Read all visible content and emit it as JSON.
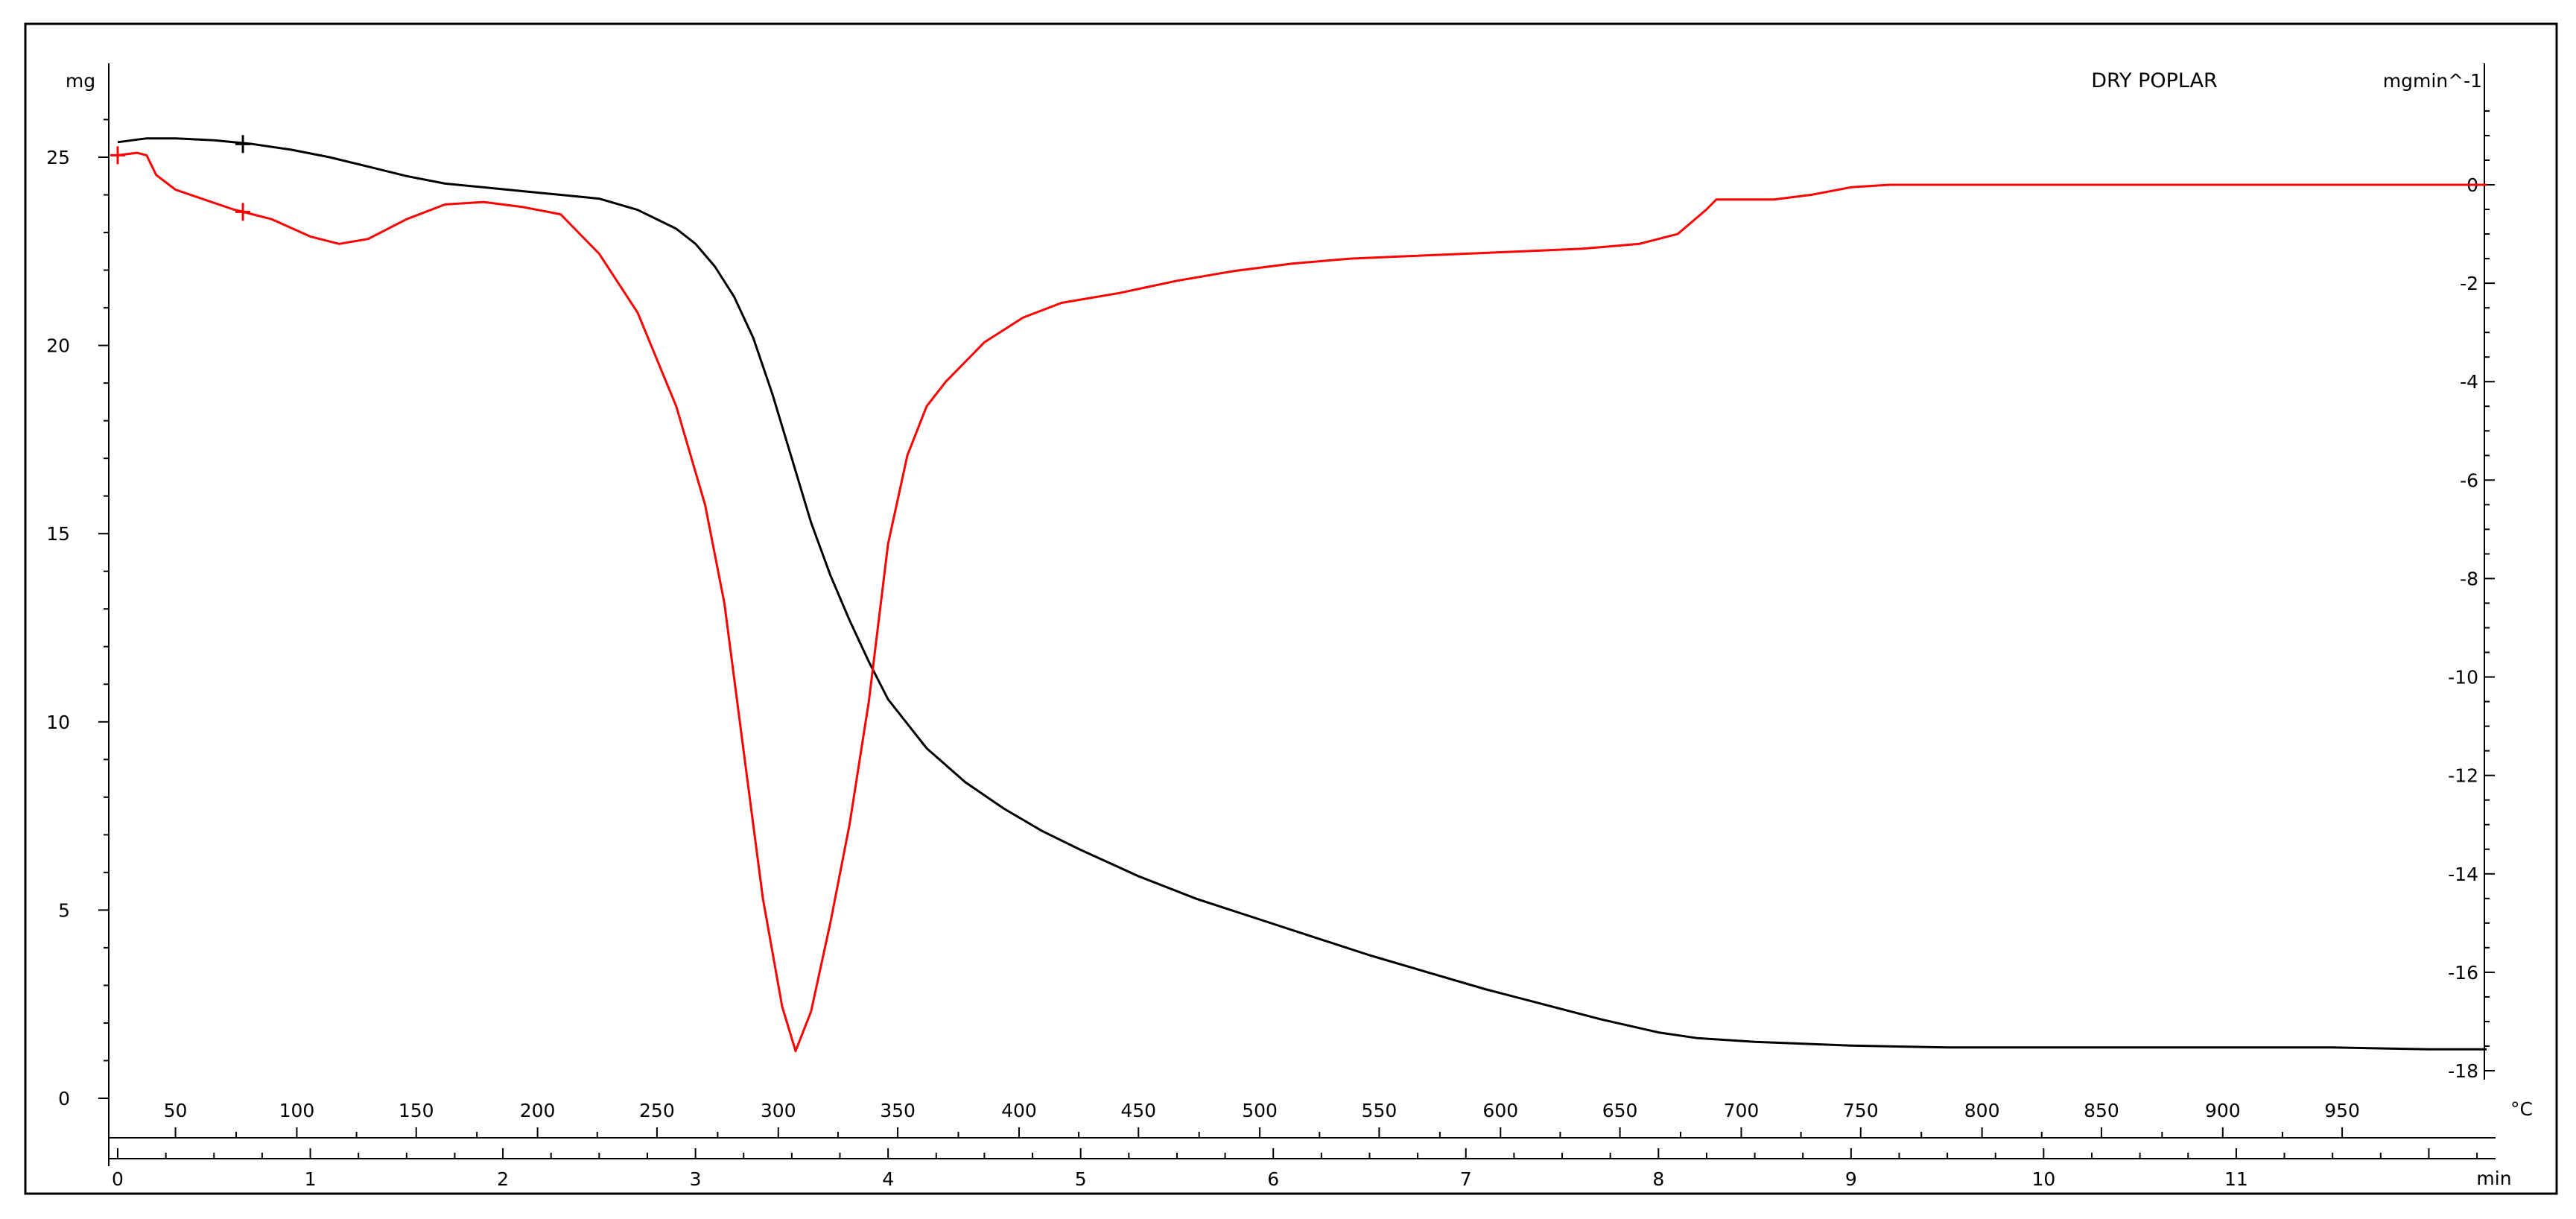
{
  "chart_data": {
    "type": "line",
    "title": "DRY POPLAR",
    "left_axis_label": "mg",
    "right_axis_label": "mgmin^-1",
    "time_axis_label": "min",
    "temp_axis_label": "°C",
    "left_ylim": [
      -0.6,
      27
    ],
    "right_ylim": [
      -18.3,
      2
    ],
    "time_xlim": [
      0,
      12.3
    ],
    "left_ticks": [
      0,
      5,
      10,
      15,
      20,
      25
    ],
    "right_ticks": [
      0,
      -2,
      -4,
      -6,
      -8,
      -10,
      -12,
      -14,
      -16,
      -18
    ],
    "time_ticks": [
      0,
      1,
      2,
      3,
      4,
      5,
      6,
      7,
      8,
      9,
      10,
      11
    ],
    "temperature_ticks": [
      {
        "t": 0.3,
        "label": "50"
      },
      {
        "t": 0.93,
        "label": "100"
      },
      {
        "t": 1.55,
        "label": "150"
      },
      {
        "t": 2.18,
        "label": "200"
      },
      {
        "t": 2.8,
        "label": "250"
      },
      {
        "t": 3.43,
        "label": "300"
      },
      {
        "t": 4.05,
        "label": "350"
      },
      {
        "t": 4.68,
        "label": "400"
      },
      {
        "t": 5.3,
        "label": "450"
      },
      {
        "t": 5.93,
        "label": "500"
      },
      {
        "t": 6.55,
        "label": "550"
      },
      {
        "t": 7.18,
        "label": "600"
      },
      {
        "t": 7.8,
        "label": "650"
      },
      {
        "t": 8.43,
        "label": "700"
      },
      {
        "t": 9.05,
        "label": "750"
      },
      {
        "t": 9.68,
        "label": "800"
      },
      {
        "t": 10.3,
        "label": "850"
      },
      {
        "t": 10.93,
        "label": "900"
      },
      {
        "t": 11.55,
        "label": "950"
      }
    ],
    "grid": false,
    "series": [
      {
        "color": "#000000",
        "axis": "left",
        "x": [
          0,
          0.15,
          0.3,
          0.5,
          0.7,
          0.9,
          1.1,
          1.3,
          1.5,
          1.7,
          1.9,
          2.1,
          2.3,
          2.5,
          2.7,
          2.9,
          3.0,
          3.1,
          3.2,
          3.3,
          3.4,
          3.5,
          3.6,
          3.7,
          3.8,
          3.9,
          4.0,
          4.2,
          4.4,
          4.6,
          4.8,
          5.0,
          5.3,
          5.6,
          5.9,
          6.2,
          6.5,
          6.8,
          7.1,
          7.4,
          7.7,
          8.0,
          8.2,
          8.5,
          9.0,
          9.5,
          10.0,
          10.5,
          11.0,
          11.5,
          12.0,
          12.3
        ],
        "y": [
          25.4,
          25.5,
          25.5,
          25.45,
          25.35,
          25.2,
          25.0,
          24.75,
          24.5,
          24.3,
          24.2,
          24.1,
          24.0,
          23.9,
          23.6,
          23.1,
          22.7,
          22.1,
          21.3,
          20.2,
          18.7,
          17.0,
          15.3,
          13.9,
          12.7,
          11.6,
          10.6,
          9.3,
          8.4,
          7.7,
          7.1,
          6.6,
          5.9,
          5.3,
          4.8,
          4.3,
          3.8,
          3.35,
          2.9,
          2.5,
          2.1,
          1.75,
          1.6,
          1.5,
          1.4,
          1.35,
          1.35,
          1.35,
          1.35,
          1.35,
          1.3,
          1.3
        ]
      },
      {
        "color": "#ff0000",
        "axis": "right",
        "x": [
          0,
          0.1,
          0.15,
          0.2,
          0.3,
          0.45,
          0.6,
          0.8,
          1.0,
          1.15,
          1.3,
          1.5,
          1.7,
          1.9,
          2.1,
          2.3,
          2.5,
          2.7,
          2.9,
          3.05,
          3.15,
          3.25,
          3.35,
          3.45,
          3.52,
          3.6,
          3.7,
          3.8,
          3.9,
          4.0,
          4.1,
          4.2,
          4.3,
          4.5,
          4.7,
          4.9,
          5.2,
          5.5,
          5.8,
          6.1,
          6.4,
          6.7,
          7.0,
          7.3,
          7.6,
          7.9,
          8.1,
          8.25,
          8.3,
          8.4,
          8.6,
          8.8,
          9.0,
          9.2,
          9.5,
          10.0,
          10.5,
          11.0,
          11.5,
          12.0,
          12.3
        ],
        "y": [
          0.6,
          0.65,
          0.6,
          0.2,
          -0.1,
          -0.3,
          -0.5,
          -0.7,
          -1.05,
          -1.2,
          -1.1,
          -0.7,
          -0.4,
          -0.35,
          -0.45,
          -0.6,
          -1.4,
          -2.6,
          -4.5,
          -6.5,
          -8.5,
          -11.5,
          -14.5,
          -16.7,
          -17.6,
          -16.8,
          -15.0,
          -13.0,
          -10.5,
          -7.3,
          -5.5,
          -4.5,
          -4.0,
          -3.2,
          -2.7,
          -2.4,
          -2.2,
          -1.95,
          -1.75,
          -1.6,
          -1.5,
          -1.45,
          -1.4,
          -1.35,
          -1.3,
          -1.2,
          -1.0,
          -0.5,
          -0.3,
          -0.3,
          -0.3,
          -0.2,
          -0.05,
          0.0,
          0.0,
          0.0,
          0.0,
          0.0,
          0.0,
          0.0,
          0.0
        ]
      }
    ],
    "markers": [
      {
        "series": 0,
        "x": 0.65,
        "y": 25.35
      },
      {
        "series": 1,
        "x": 0.65,
        "y": -0.55
      },
      {
        "series": 1,
        "x": 0.0,
        "y": 0.6
      }
    ]
  }
}
